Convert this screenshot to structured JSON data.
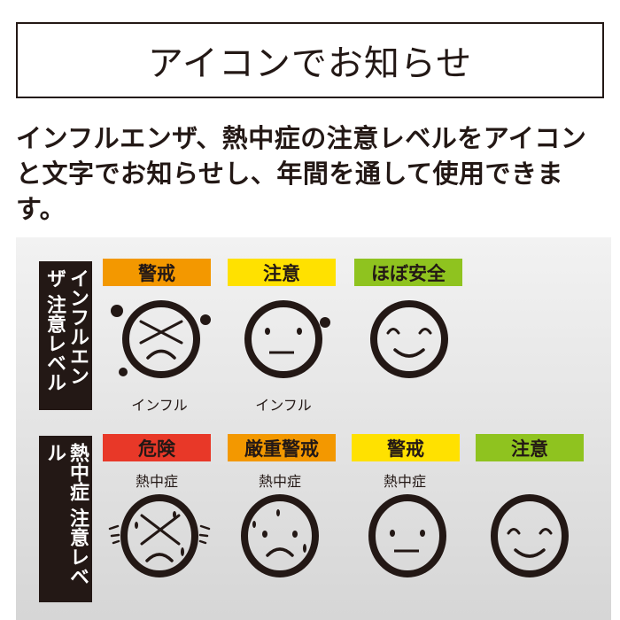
{
  "title": "アイコンでお知らせ",
  "description": "インフルエンザ、熱中症の注意レベルをアイコンと文字でお知らせし、年間を通して使用できます。",
  "colors": {
    "red": "#e83828",
    "orange": "#f39800",
    "yellow": "#ffe100",
    "green": "#8fc31f",
    "dark": "#231815"
  },
  "influenza": {
    "label": "インフルエンザ 注意レベル",
    "levels": [
      {
        "badge": "警戒",
        "caption": "インフル",
        "icon": "face-x-eyes-frown-virus-icon"
      },
      {
        "badge": "注意",
        "caption": "インフル",
        "icon": "face-neutral-virus-icon"
      },
      {
        "badge": "ほぼ安全",
        "caption": "",
        "icon": "face-smile-icon"
      }
    ]
  },
  "heatstroke": {
    "label": "熱中症 注意レベル",
    "levels": [
      {
        "badge": "危険",
        "caption": "熱中症",
        "icon": "face-x-eyes-sweat-icon"
      },
      {
        "badge": "厳重警戒",
        "caption": "熱中症",
        "icon": "face-frown-sweat-icon"
      },
      {
        "badge": "警戒",
        "caption": "熱中症",
        "icon": "face-neutral-icon"
      },
      {
        "badge": "注意",
        "caption": "",
        "icon": "face-smile-icon"
      }
    ]
  }
}
